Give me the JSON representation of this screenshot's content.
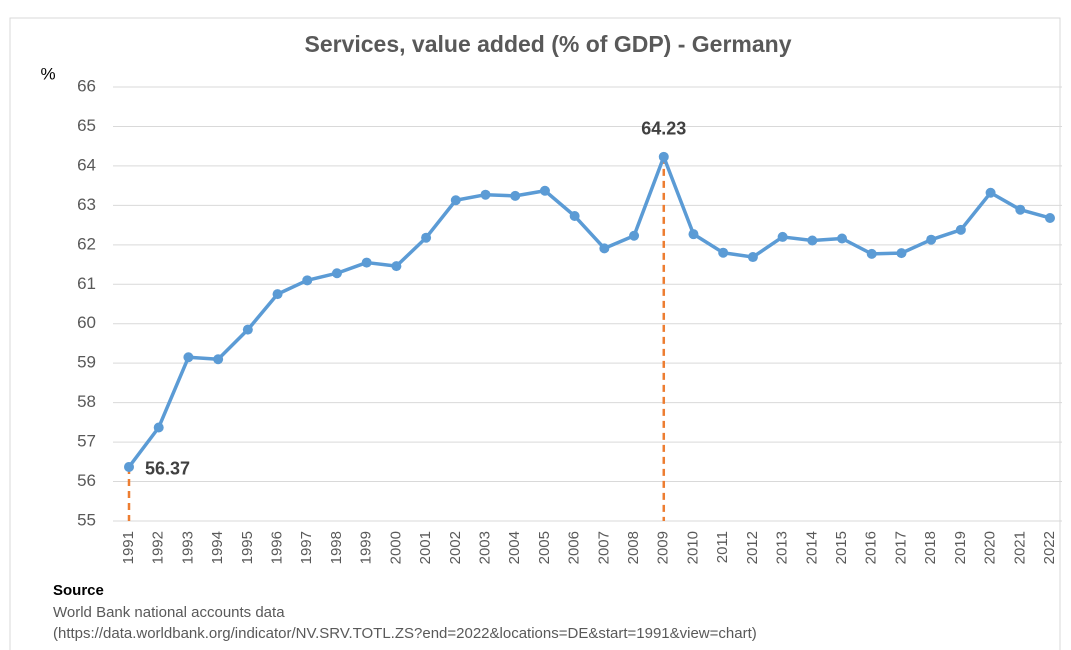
{
  "chart_data": {
    "type": "line",
    "title": "Services, value added (% of GDP) - Germany",
    "y_label": "%",
    "categories": [
      "1991",
      "1992",
      "1993",
      "1994",
      "1995",
      "1996",
      "1997",
      "1998",
      "1999",
      "2000",
      "2001",
      "2002",
      "2003",
      "2004",
      "2005",
      "2006",
      "2007",
      "2008",
      "2009",
      "2010",
      "2011",
      "2012",
      "2013",
      "2014",
      "2015",
      "2016",
      "2017",
      "2018",
      "2019",
      "2020",
      "2021",
      "2022"
    ],
    "values": [
      56.37,
      57.37,
      59.15,
      59.1,
      59.85,
      60.75,
      61.1,
      61.28,
      61.55,
      61.46,
      62.18,
      63.13,
      63.27,
      63.24,
      63.37,
      62.73,
      61.91,
      62.23,
      64.23,
      62.27,
      61.8,
      61.69,
      62.2,
      62.11,
      62.16,
      61.77,
      61.79,
      62.13,
      62.38,
      63.32,
      62.89,
      62.68
    ],
    "color": "#5b9bd5",
    "highlight_color": "#ed7d31",
    "labeled_points": [
      "1991",
      "2009"
    ],
    "ylim": [
      55,
      66
    ],
    "yticks": [
      55,
      56,
      57,
      58,
      59,
      60,
      61,
      62,
      63,
      64,
      65,
      66
    ],
    "grid": true,
    "source_heading": "Source",
    "source_lines": [
      "World Bank national accounts data",
      "(https://data.worldbank.org/indicator/NV.SRV.TOTL.ZS?end=2022&locations=DE&start=1991&view=chart)"
    ]
  }
}
